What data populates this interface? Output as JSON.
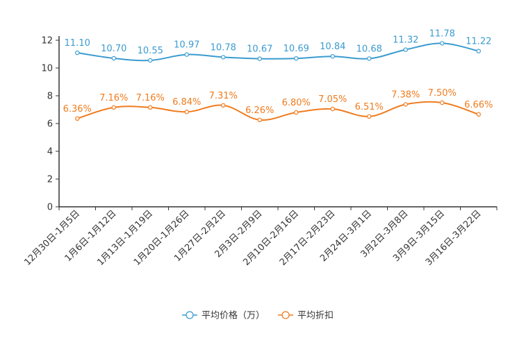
{
  "chart_data": {
    "type": "line",
    "categories": [
      "12月30日-1月5日",
      "1月6日-1月12日",
      "1月13日-1月19日",
      "1月20日-1月26日",
      "1月27日-2月2日",
      "2月3日-2月9日",
      "2月10日-2月16日",
      "2月17日-2月23日",
      "2月24日-3月1日",
      "3月2日-3月8日",
      "3月9日-3月15日",
      "3月16日-3月22日"
    ],
    "ylim": [
      0,
      12
    ],
    "yticks": [
      "0",
      "2",
      "4",
      "6",
      "8",
      "10",
      "12"
    ],
    "series": [
      {
        "name": "平均价格（万）",
        "color": "#3a9bcf",
        "values": [
          11.1,
          10.7,
          10.55,
          10.97,
          10.78,
          10.67,
          10.69,
          10.84,
          10.68,
          11.32,
          11.78,
          11.22
        ],
        "labels": [
          "11.10",
          "10.70",
          "10.55",
          "10.97",
          "10.78",
          "10.67",
          "10.69",
          "10.84",
          "10.68",
          "11.32",
          "11.78",
          "11.22"
        ]
      },
      {
        "name": "平均折扣",
        "color": "#f07b1d",
        "values": [
          6.36,
          7.16,
          7.16,
          6.84,
          7.31,
          6.26,
          6.8,
          7.05,
          6.51,
          7.38,
          7.5,
          6.66
        ],
        "labels": [
          "6.36%",
          "7.16%",
          "7.16%",
          "6.84%",
          "7.31%",
          "6.26%",
          "6.80%",
          "7.05%",
          "6.51%",
          "7.38%",
          "7.50%",
          "6.66%"
        ]
      }
    ],
    "legend": "bottom"
  }
}
